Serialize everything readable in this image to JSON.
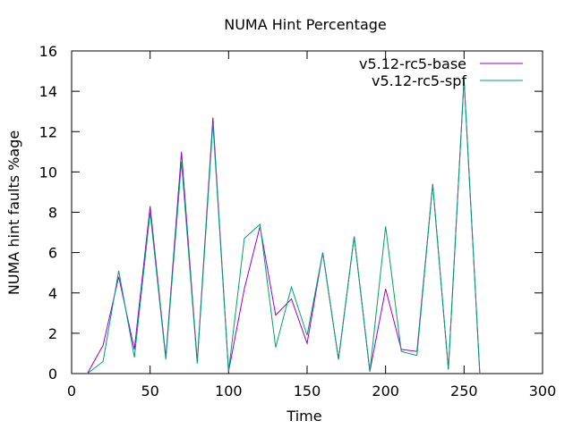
{
  "chart_data": {
    "type": "line",
    "title": "NUMA Hint Percentage",
    "xlabel": "Time",
    "ylabel": "NUMA hint faults %age",
    "xlim": [
      0,
      300
    ],
    "ylim": [
      0,
      16
    ],
    "xticks": [
      "0",
      "50",
      "100",
      "150",
      "200",
      "250",
      "300"
    ],
    "yticks": [
      "0",
      "2",
      "4",
      "6",
      "8",
      "10",
      "12",
      "14",
      "16"
    ],
    "grid": false,
    "legend_position": "top-right",
    "series": [
      {
        "name": "v5.12-rc5-base",
        "color": "#9400d3",
        "x": [
          10,
          20,
          30,
          40,
          50,
          60,
          70,
          80,
          90,
          100,
          110,
          120,
          130,
          140,
          150,
          160,
          170,
          180,
          190,
          200,
          210,
          220,
          230,
          240,
          250,
          260
        ],
        "y": [
          0,
          1.4,
          4.8,
          1.2,
          8.3,
          0.8,
          11.0,
          0.6,
          12.7,
          0.1,
          4.2,
          7.3,
          2.9,
          3.7,
          1.5,
          6.0,
          0.7,
          6.8,
          0.1,
          4.2,
          1.2,
          1.1,
          9.4,
          0.2,
          14.6,
          0
        ]
      },
      {
        "name": "v5.12-rc5-spf",
        "color": "#009e73",
        "x": [
          10,
          20,
          30,
          40,
          50,
          60,
          70,
          80,
          90,
          100,
          110,
          120,
          130,
          140,
          150,
          160,
          170,
          180,
          190,
          200,
          210,
          220,
          230,
          240,
          250,
          260
        ],
        "y": [
          0,
          0.6,
          5.1,
          0.8,
          8.0,
          0.7,
          10.5,
          0.5,
          12.4,
          0.1,
          6.7,
          7.4,
          1.3,
          4.3,
          1.9,
          6.0,
          0.7,
          6.8,
          0.1,
          7.3,
          1.1,
          0.9,
          9.4,
          0.2,
          14.6,
          0
        ]
      }
    ]
  }
}
